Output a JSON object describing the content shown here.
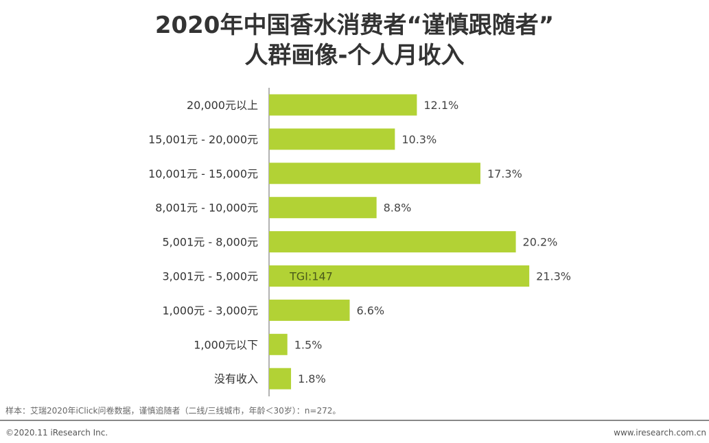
{
  "title_line1": "2020年中国香水消费者“谨慎跟随者”",
  "title_line2": "人群画像-个人月收入",
  "chart_data": {
    "type": "bar",
    "orientation": "horizontal",
    "categories": [
      "20,000元以上",
      "15,001元 - 20,000元",
      "10,001元 - 15,000元",
      "8,001元 - 10,000元",
      "5,001元 - 8,000元",
      "3,001元 - 5,000元",
      "1,000元 - 3,000元",
      "1,000元以下",
      "没有收入"
    ],
    "values": [
      12.1,
      10.3,
      17.3,
      8.8,
      20.2,
      21.3,
      6.6,
      1.5,
      1.8
    ],
    "data_labels": [
      "12.1%",
      "10.3%",
      "17.3%",
      "8.8%",
      "20.2%",
      "21.3%",
      "6.6%",
      "1.5%",
      "1.8%"
    ],
    "annotations": [
      {
        "category": "3,001元 - 5,000元",
        "text": "TGI:147"
      }
    ],
    "bar_color": "#b2d235",
    "grid": false
  },
  "footer": {
    "note": "样本：艾瑞2020年iClick问卷数据，谨慎追随者（二线/三线城市，年龄＜30岁）：n=272。",
    "copyright": "©2020.11 iResearch Inc.",
    "website": "www.iresearch.com.cn"
  }
}
